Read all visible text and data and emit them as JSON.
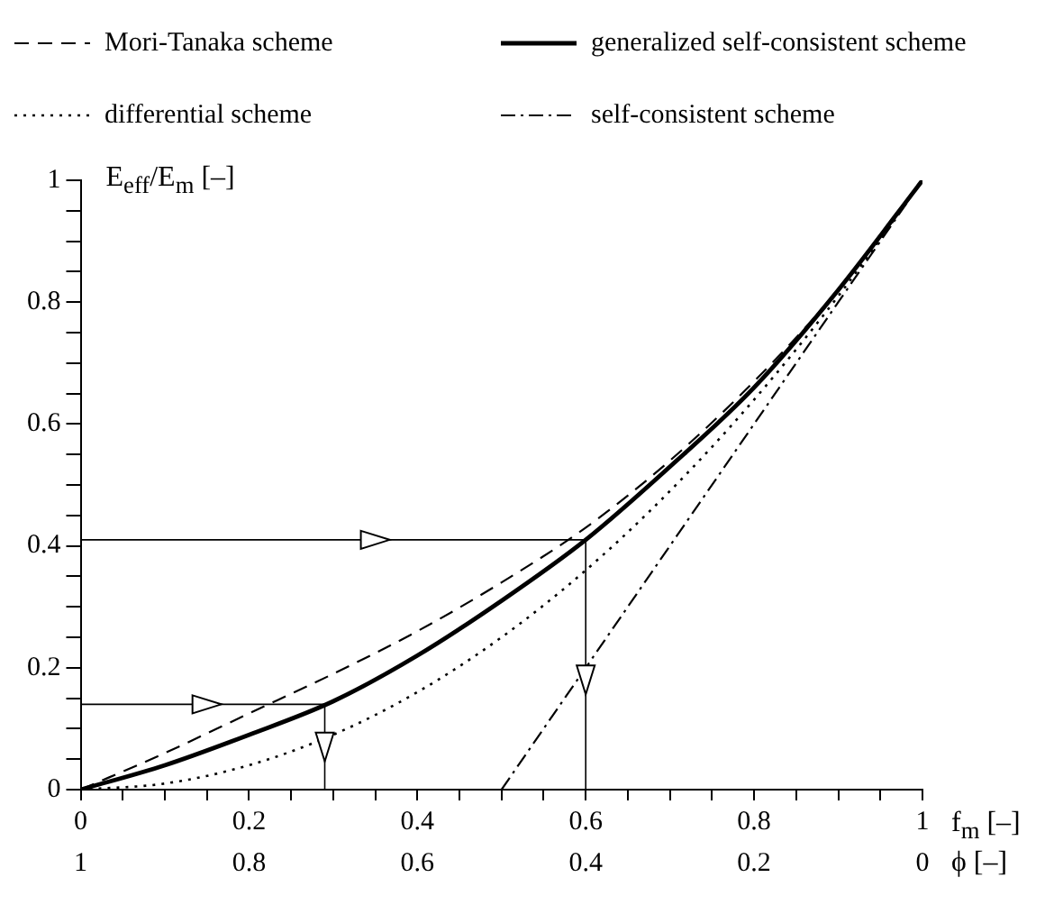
{
  "chart_data": {
    "type": "line",
    "xlabel": "f$_{m}$ [–]",
    "ylabel": "E$_{eff}$/E$_{m}$ [–]",
    "x2label": "ϕ [–]",
    "xlim": [
      0,
      1
    ],
    "xticks": [
      0,
      {
        "value": 0.05,
        "label": null
      },
      0.2,
      {
        "value": 0.1,
        "label": null
      },
      {
        "value": 0.15,
        "label": null
      },
      {
        "value": 0.25,
        "label": null
      },
      {
        "value": 0.3,
        "label": null
      },
      {
        "value": 0.35,
        "label": null
      },
      0.4,
      {
        "value": 0.45,
        "label": null
      },
      {
        "value": 0.5,
        "label": null
      },
      {
        "value": 0.55,
        "label": null
      },
      0.6,
      {
        "value": 0.65,
        "label": null
      },
      {
        "value": 0.7,
        "label": null
      },
      {
        "value": 0.75,
        "label": null
      },
      0.8,
      {
        "value": 0.85,
        "label": null
      },
      {
        "value": 0.9,
        "label": null
      },
      {
        "value": 0.95,
        "label": null
      },
      1
    ],
    "x2lim": [
      1,
      0
    ],
    "x2ticks": [
      1,
      0.8,
      0.6,
      0.4,
      0.2,
      0
    ],
    "ylim": [
      0,
      1
    ],
    "yticks": [
      0,
      {
        "value": 0.05,
        "label": null
      },
      {
        "value": 0.1,
        "label": null
      },
      {
        "value": 0.15,
        "label": null
      },
      0.2,
      {
        "value": 0.25,
        "label": null
      },
      {
        "value": 0.3,
        "label": null
      },
      {
        "value": 0.35,
        "label": null
      },
      0.4,
      {
        "value": 0.45,
        "label": null
      },
      {
        "value": 0.5,
        "label": null
      },
      {
        "value": 0.55,
        "label": null
      },
      0.6,
      {
        "value": 0.65,
        "label": null
      },
      {
        "value": 0.7,
        "label": null
      },
      {
        "value": 0.75,
        "label": null
      },
      0.8,
      {
        "value": 0.85,
        "label": null
      },
      {
        "value": 0.9,
        "label": null
      },
      {
        "value": 0.95,
        "label": null
      },
      1
    ],
    "grid": false,
    "legend": "top",
    "marker": "none",
    "series": [
      {
        "name": "Mori-Tanaka scheme",
        "color": "#000000",
        "line_style": "dashed",
        "x": [
          0,
          0.1,
          0.2,
          0.3,
          0.4,
          0.5,
          0.6,
          0.7,
          0.8,
          0.9,
          1
        ],
        "values": [
          0,
          0.06,
          0.125,
          0.19,
          0.26,
          0.34,
          0.43,
          0.54,
          0.67,
          0.82,
          1
        ]
      },
      {
        "name": "generalized self-consistent scheme",
        "color": "#000000",
        "line_style": "solid",
        "x": [
          0,
          0.1,
          0.2,
          0.3,
          0.4,
          0.5,
          0.6,
          0.7,
          0.8,
          0.9,
          1
        ],
        "values": [
          0,
          0.04,
          0.09,
          0.145,
          0.22,
          0.31,
          0.41,
          0.53,
          0.66,
          0.82,
          1
        ]
      },
      {
        "name": "differential scheme",
        "color": "#000000",
        "line_style": "dotted",
        "x": [
          0,
          0.1,
          0.2,
          0.3,
          0.4,
          0.5,
          0.6,
          0.7,
          0.8,
          0.9,
          1
        ],
        "values": [
          0,
          0.01,
          0.04,
          0.09,
          0.16,
          0.25,
          0.36,
          0.49,
          0.64,
          0.81,
          1
        ]
      },
      {
        "name": "self-consistent scheme",
        "color": "#000000",
        "line_style": "dashdot",
        "x": [
          0.5,
          0.6,
          0.7,
          0.8,
          0.9,
          1
        ],
        "values": [
          0,
          0.2,
          0.4,
          0.6,
          0.8,
          1
        ]
      },
      {
        "color": "#000000",
        "line_style": "solid",
        "x": [
          0,
          0.6,
          0.6
        ],
        "values": [
          0.41,
          0.41,
          0
        ]
      },
      {
        "color": "#000000",
        "line_style": "solid",
        "x": [
          0,
          0.29,
          0.29
        ],
        "values": [
          0.14,
          0.14,
          0
        ]
      }
    ]
  }
}
